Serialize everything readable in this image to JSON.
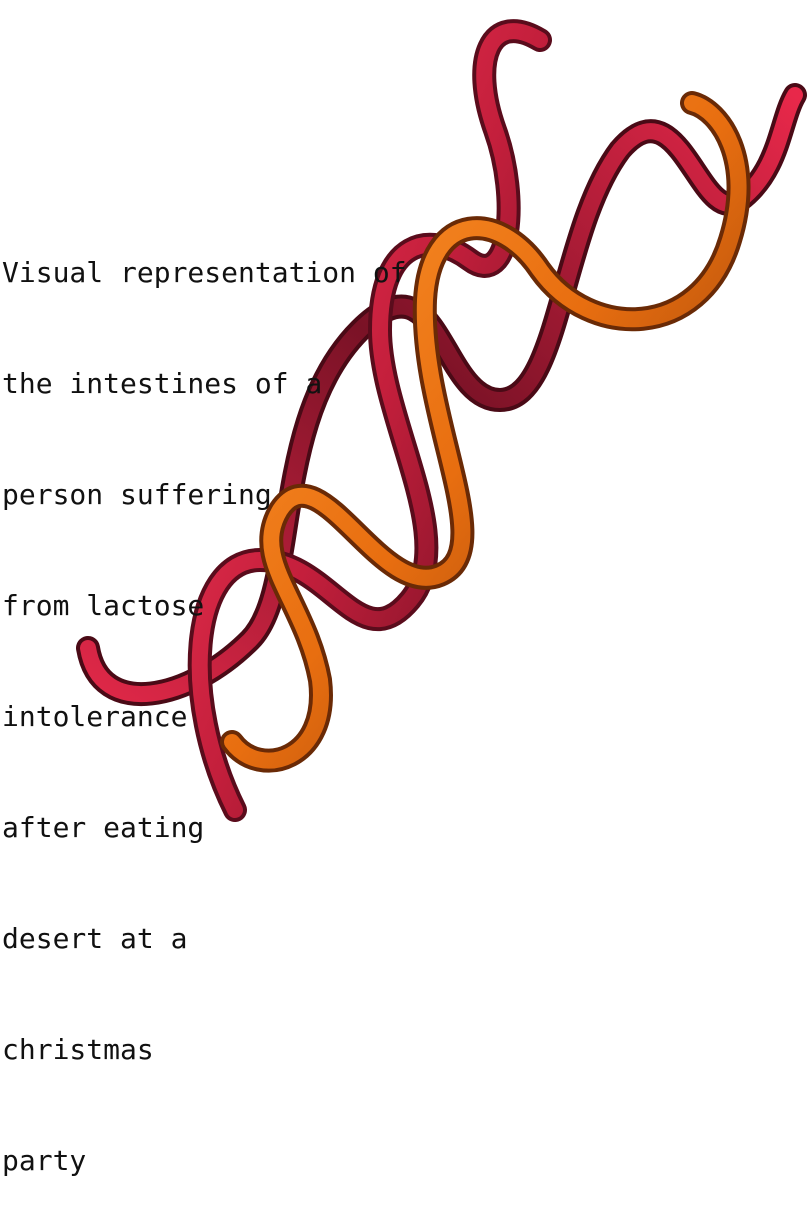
{
  "caption_lines": [
    "Visual representation of",
    "the intestines of a",
    "person suffering",
    "from lactose",
    "intolerance",
    "after eating",
    "desert at a",
    "christmas",
    "party"
  ],
  "colors": {
    "background": "#ffffff",
    "text": "#111111",
    "tube_red": "#e8284a",
    "tube_red_dark": "#5a0c1c",
    "tube_orange": "#f07c18",
    "tube_orange_dark": "#6a2a06"
  }
}
